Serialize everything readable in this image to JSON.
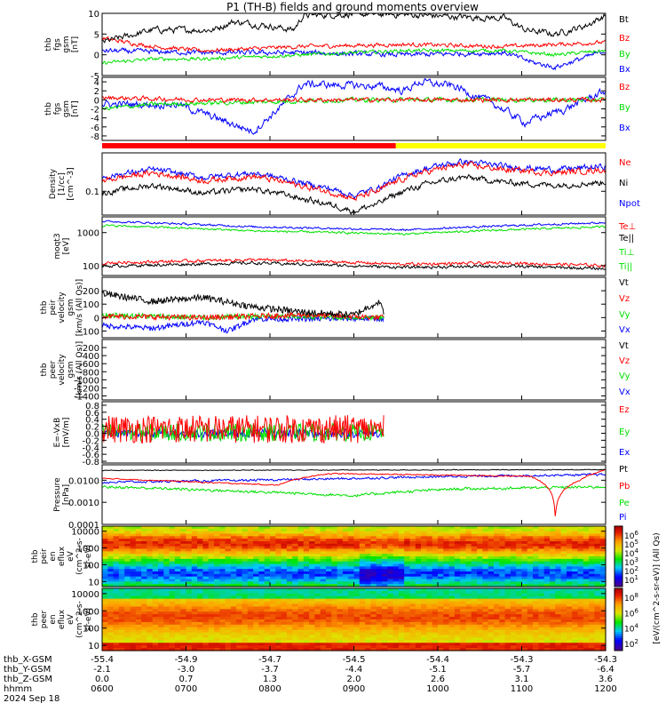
{
  "title": "P1 (TH-B) fields and ground moments overview",
  "colors": {
    "black": "#000000",
    "red": "#ff0000",
    "green": "#00e000",
    "blue": "#0000ff",
    "yellow": "#ffff00"
  },
  "status_bar": {
    "segments": [
      {
        "color": "red",
        "from": "0600",
        "to": "0930"
      },
      {
        "color": "yellow",
        "from": "0930",
        "to": "1200"
      }
    ]
  },
  "chart_data": [
    {
      "type": "line",
      "ylabel": [
        "thb",
        "fgs",
        "gsm",
        "[nT]"
      ],
      "ylim": [
        -5,
        10
      ],
      "yticks": [
        "-5",
        "0",
        "5",
        "10"
      ],
      "series": [
        {
          "name": "Bt",
          "color": "black"
        },
        {
          "name": "Bz",
          "color": "red"
        },
        {
          "name": "By",
          "color": "green"
        },
        {
          "name": "Bx",
          "color": "blue"
        }
      ]
    },
    {
      "type": "line",
      "ylabel": [
        "thb",
        "fgs",
        "gsm",
        "[nT]"
      ],
      "ylim": [
        -9,
        5
      ],
      "yticks": [
        "-8",
        "-6",
        "-4",
        "-2",
        "0",
        "2",
        "4"
      ],
      "series": [
        {
          "name": "Bz",
          "color": "red"
        },
        {
          "name": "By",
          "color": "green"
        },
        {
          "name": "Bx",
          "color": "blue"
        }
      ]
    },
    {
      "type": "line",
      "ylabel": [
        "Density",
        "[1/cc]",
        "[cm^-3]"
      ],
      "scale": "log",
      "ylim": [
        0.03,
        0.7
      ],
      "yticks": [
        "0.1"
      ],
      "series": [
        {
          "name": "Ne",
          "color": "red"
        },
        {
          "name": "Ni",
          "color": "black"
        },
        {
          "name": "Npot",
          "color": "blue"
        }
      ]
    },
    {
      "type": "line",
      "ylabel": [
        "moqt3",
        "[eV]"
      ],
      "scale": "log",
      "ylim": [
        50,
        3000
      ],
      "yticks": [
        "100",
        "1000"
      ],
      "series": [
        {
          "name": "Te⊥",
          "color": "red"
        },
        {
          "name": "Te||",
          "color": "black"
        },
        {
          "name": "Ti⊥",
          "color": "green"
        },
        {
          "name": "Ti||",
          "color": "green"
        }
      ]
    },
    {
      "type": "line",
      "ylabel": [
        "thb",
        "peir",
        "velocity",
        "gsm",
        "[km/s (All Qs)]"
      ],
      "ylim": [
        -150,
        300
      ],
      "yticks": [
        "-100",
        "0",
        "100",
        "200"
      ],
      "series": [
        {
          "name": "Vt",
          "color": "black"
        },
        {
          "name": "Vz",
          "color": "red"
        },
        {
          "name": "Vy",
          "color": "green"
        },
        {
          "name": "Vx",
          "color": "blue"
        }
      ]
    },
    {
      "type": "line",
      "ylabel": [
        "thb",
        "peer",
        "velocity",
        "gsm",
        "[km/s (All Qs)]"
      ],
      "ylim": [
        -1500,
        0
      ],
      "yticks": [
        "-1400",
        "-1200",
        "-1000",
        "-800",
        "-600",
        "-400",
        "-200"
      ],
      "series": [
        {
          "name": "Vt",
          "color": "black"
        },
        {
          "name": "Vz",
          "color": "red"
        },
        {
          "name": "Vy",
          "color": "green"
        },
        {
          "name": "Vx",
          "color": "blue"
        }
      ]
    },
    {
      "type": "line",
      "ylabel": [
        "E=-VxB",
        "[mV/m]"
      ],
      "ylim": [
        -0.85,
        0.9
      ],
      "yticks": [
        "-0.8",
        "-0.6",
        "-0.4",
        "-0.2",
        "0.0",
        "0.2",
        "0.4",
        "0.6",
        "0.8"
      ],
      "series": [
        {
          "name": "Ez",
          "color": "red"
        },
        {
          "name": "Ey",
          "color": "green"
        },
        {
          "name": "Ex",
          "color": "blue"
        }
      ]
    },
    {
      "type": "line",
      "ylabel": [
        "Pressure",
        "[nPa]"
      ],
      "scale": "log",
      "ylim": [
        0.0001,
        0.05
      ],
      "yticks": [
        "0.0001",
        "0.0010",
        "0.0100"
      ],
      "series": [
        {
          "name": "Pt",
          "color": "black"
        },
        {
          "name": "Pb",
          "color": "red"
        },
        {
          "name": "Pe",
          "color": "green"
        },
        {
          "name": "Pi",
          "color": "blue"
        }
      ]
    },
    {
      "type": "heatmap",
      "ylabel": [
        "thb",
        "peir",
        "en",
        "eflux",
        "eV",
        "(cm^2-s-",
        "sr-eV)"
      ],
      "scale": "log",
      "ylim": [
        5,
        20000
      ],
      "yticks": [
        "10",
        "100",
        "1000",
        "10000"
      ]
    },
    {
      "type": "heatmap",
      "ylabel": [
        "thb",
        "peer",
        "en",
        "eflux",
        "eV",
        "(cm^2-s-",
        "sr-eV)"
      ],
      "scale": "log",
      "ylim": [
        5,
        20000
      ],
      "yticks": [
        "10",
        "100",
        "1000",
        "10000"
      ]
    }
  ],
  "colorbar": {
    "label": "[eV/(cm^2-s-sr-eV)] (All Qs)",
    "ticks_upper": [
      "10^6",
      "10^5",
      "10^4",
      "10^3",
      "10^2",
      "10^1"
    ],
    "ticks_lower": [
      "10^8",
      "10^6",
      "10^4",
      "10^2"
    ]
  },
  "x_axis": {
    "ticks": [
      "0600",
      "0700",
      "0800",
      "0900",
      "1000",
      "1100",
      "1200"
    ],
    "rows": [
      {
        "label": "thb_X-GSM",
        "values": [
          "-55.4",
          "-54.9",
          "-54.7",
          "-54.5",
          "-54.4",
          "-54.3",
          "-54.3"
        ]
      },
      {
        "label": "thb_Y-GSM",
        "values": [
          "-2.1",
          "-3.0",
          "-3.7",
          "-4.4",
          "-5.1",
          "-5.7",
          "-6.4"
        ]
      },
      {
        "label": "thb_Z-GSM",
        "values": [
          "0.0",
          "0.7",
          "1.3",
          "2.0",
          "2.6",
          "3.1",
          "3.6"
        ]
      },
      {
        "label": "hhmm",
        "values": [
          "0600",
          "0700",
          "0800",
          "0900",
          "1000",
          "1100",
          "1200"
        ]
      }
    ],
    "date": "2024 Sep 18"
  }
}
